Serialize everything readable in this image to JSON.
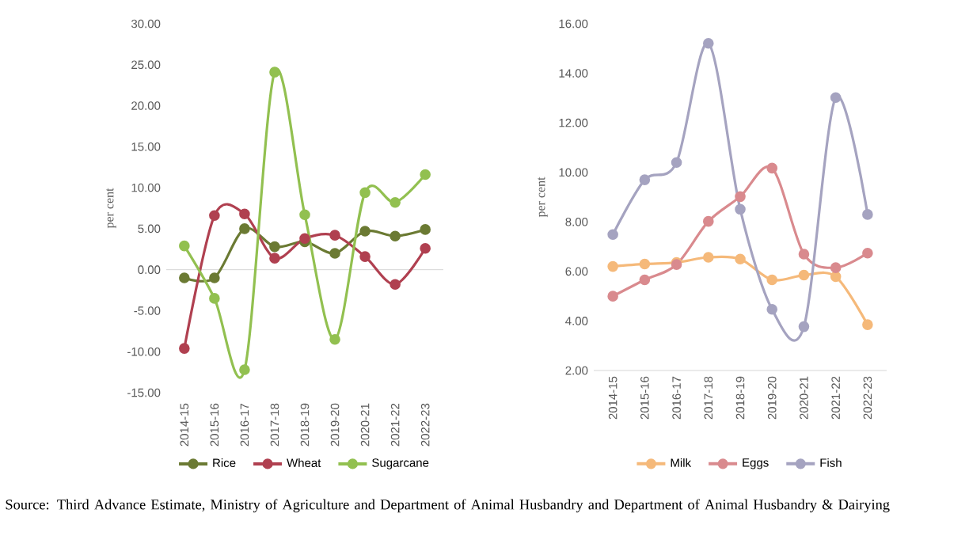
{
  "chart_data": [
    {
      "type": "line",
      "ylabel": "per cent",
      "categories": [
        "2014-15",
        "2015-16",
        "2016-17",
        "2017-18",
        "2018-19",
        "2019-20",
        "2020-21",
        "2021-22",
        "2022-23"
      ],
      "series": [
        {
          "name": "Rice",
          "color": "#6b7a33",
          "values": [
            -1.0,
            -1.0,
            5.0,
            2.8,
            3.4,
            2.0,
            4.7,
            4.1,
            4.9
          ]
        },
        {
          "name": "Wheat",
          "color": "#b04050",
          "values": [
            -9.6,
            6.6,
            6.8,
            1.4,
            3.8,
            4.2,
            1.6,
            -1.8,
            2.6
          ]
        },
        {
          "name": "Sugarcane",
          "color": "#92c050",
          "values": [
            2.9,
            -3.5,
            -12.2,
            24.1,
            6.7,
            -8.5,
            9.4,
            8.2,
            11.6
          ]
        }
      ],
      "ylim": [
        -15,
        30
      ],
      "yticks": [
        {
          "value": -15,
          "label": "-15.00"
        },
        {
          "value": -10,
          "label": "-10.00"
        },
        {
          "value": -5,
          "label": "-5.00"
        },
        {
          "value": 0,
          "label": "0.00"
        },
        {
          "value": 5,
          "label": "5.00"
        },
        {
          "value": 10,
          "label": "10.00"
        },
        {
          "value": 15,
          "label": "15.00"
        },
        {
          "value": 20,
          "label": "20.00"
        },
        {
          "value": 25,
          "label": "25.00"
        },
        {
          "value": 30,
          "label": "30.00"
        }
      ],
      "marker": "circle",
      "legend": "bottom",
      "annotations": [
        "Source: Third Advance Estimate, Ministry of Agriculture and Department of Animal Husbandry and Department of Animal Husbandry & Dairying"
      ]
    },
    {
      "type": "line",
      "ylabel": "per cent",
      "categories": [
        "2014-15",
        "2015-16",
        "2016-17",
        "2017-18",
        "2018-19",
        "2019-20",
        "2020-21",
        "2021-22",
        "2022-23"
      ],
      "series": [
        {
          "name": "Milk",
          "color": "#f5b97a",
          "values": [
            6.2,
            6.3,
            6.36,
            6.57,
            6.5,
            5.66,
            5.85,
            5.79,
            3.85
          ]
        },
        {
          "name": "Eggs",
          "color": "#d98a8e",
          "values": [
            5.0,
            5.66,
            6.28,
            8.02,
            9.02,
            10.17,
            6.7,
            6.15,
            6.74
          ]
        },
        {
          "name": "Fish",
          "color": "#a5a3c0",
          "values": [
            7.49,
            9.7,
            10.4,
            15.21,
            8.51,
            4.47,
            3.77,
            13.02,
            8.3
          ]
        }
      ],
      "ylim": [
        2,
        16
      ],
      "yticks": [
        {
          "value": 2,
          "label": "2.00"
        },
        {
          "value": 4,
          "label": "4.00"
        },
        {
          "value": 6,
          "label": "6.00"
        },
        {
          "value": 8,
          "label": "8.00"
        },
        {
          "value": 10,
          "label": "10.00"
        },
        {
          "value": 12,
          "label": "12.00"
        },
        {
          "value": 14,
          "label": "14.00"
        },
        {
          "value": 16,
          "label": "16.00"
        }
      ],
      "marker": "circle",
      "legend": "bottom"
    }
  ]
}
